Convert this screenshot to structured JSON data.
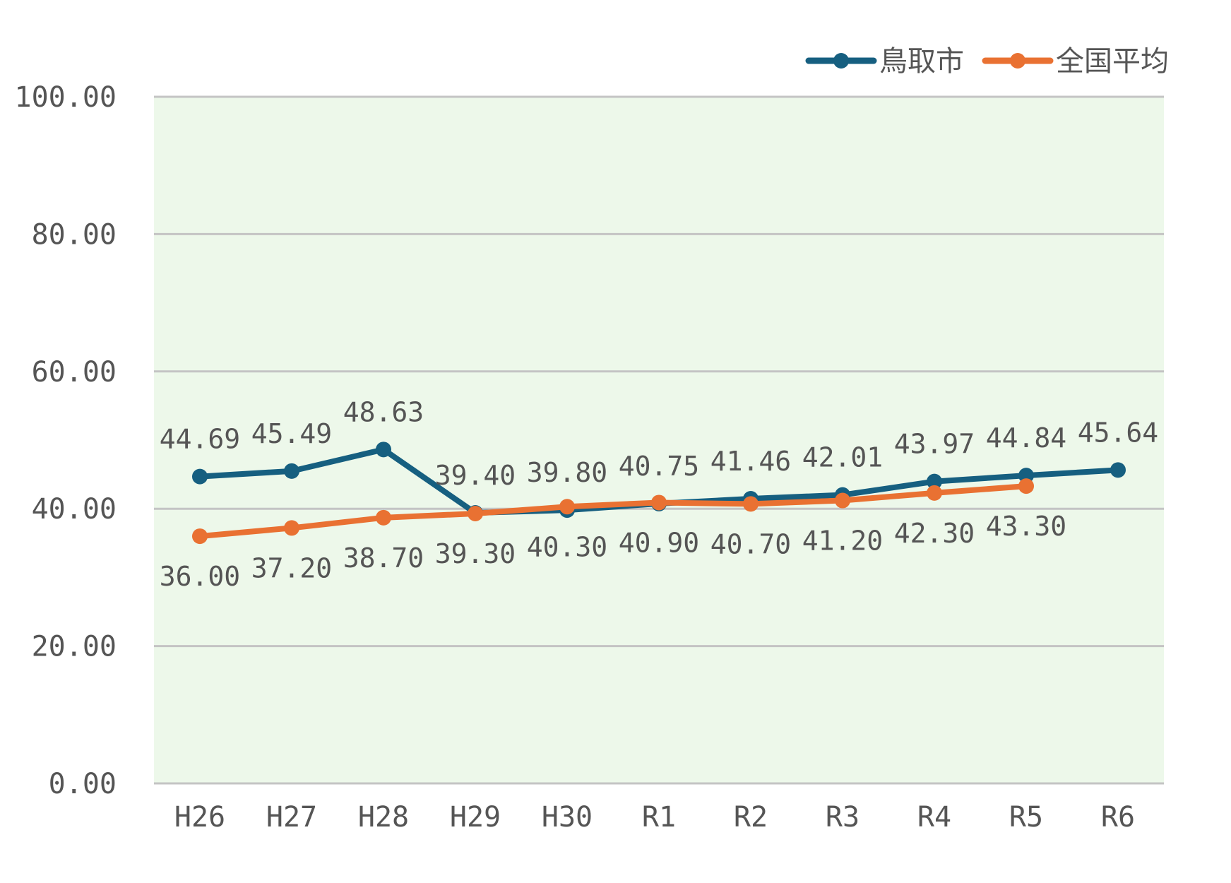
{
  "chart_data": {
    "type": "line",
    "categories": [
      "H26",
      "H27",
      "H28",
      "H29",
      "H30",
      "R1",
      "R2",
      "R3",
      "R4",
      "R5",
      "R6"
    ],
    "series": [
      {
        "name": "鳥取市",
        "color": "#165f80",
        "values": [
          44.69,
          45.49,
          48.63,
          39.4,
          39.8,
          40.75,
          41.46,
          42.01,
          43.97,
          44.84,
          45.64
        ],
        "labels": [
          "44.69",
          "45.49",
          "48.63",
          "39.40",
          "39.80",
          "40.75",
          "41.46",
          "42.01",
          "43.97",
          "44.84",
          "45.64"
        ],
        "label_position": "above"
      },
      {
        "name": "全国平均",
        "color": "#e97132",
        "values": [
          36.0,
          37.2,
          38.7,
          39.3,
          40.3,
          40.9,
          40.7,
          41.2,
          42.3,
          43.3,
          null
        ],
        "labels": [
          "36.00",
          "37.20",
          "38.70",
          "39.30",
          "40.30",
          "40.90",
          "40.70",
          "41.20",
          "42.30",
          "43.30",
          null
        ],
        "label_position": "below"
      }
    ],
    "yticks": [
      "0.00",
      "20.00",
      "40.00",
      "60.00",
      "80.00",
      "100.00"
    ],
    "ylim": [
      0,
      100
    ],
    "grid": true,
    "plot_background": "#edf8ea",
    "legend_position": "top-right",
    "title": "",
    "xlabel": "",
    "ylabel": ""
  }
}
